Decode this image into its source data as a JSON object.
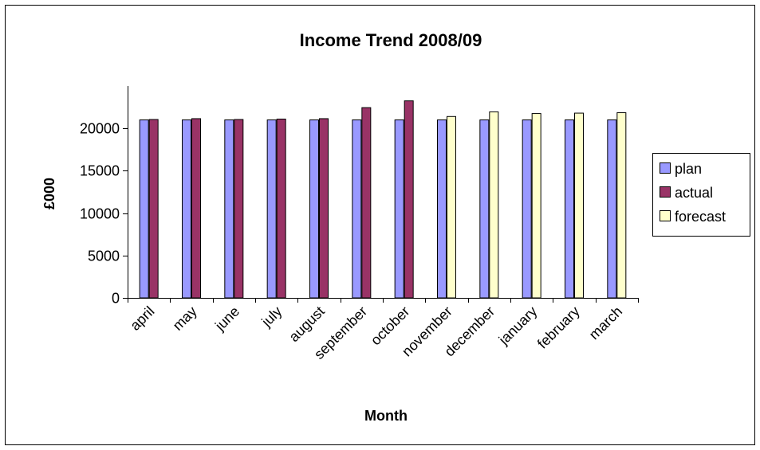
{
  "chart_data": {
    "type": "bar",
    "title": "Income Trend 2008/09",
    "xlabel": "Month",
    "ylabel": "£000",
    "ylim": [
      0,
      25000
    ],
    "yticks": [
      0,
      5000,
      10000,
      15000,
      20000
    ],
    "grid": false,
    "legend_position": "right",
    "categories": [
      "april",
      "may",
      "june",
      "july",
      "august",
      "september",
      "october",
      "november",
      "december",
      "january",
      "february",
      "march"
    ],
    "series": [
      {
        "name": "plan",
        "color": "#9999ff",
        "values": [
          21000,
          21000,
          21000,
          21000,
          21000,
          21000,
          21000,
          21000,
          21000,
          21000,
          21000,
          21000
        ]
      },
      {
        "name": "actual",
        "color": "#993366",
        "values": [
          21050,
          21150,
          21050,
          21100,
          21150,
          22450,
          23250,
          null,
          null,
          null,
          null,
          null
        ]
      },
      {
        "name": "forecast",
        "color": "#ffffcc",
        "values": [
          null,
          null,
          null,
          null,
          null,
          null,
          null,
          21400,
          21950,
          21750,
          21800,
          21850
        ]
      }
    ]
  }
}
